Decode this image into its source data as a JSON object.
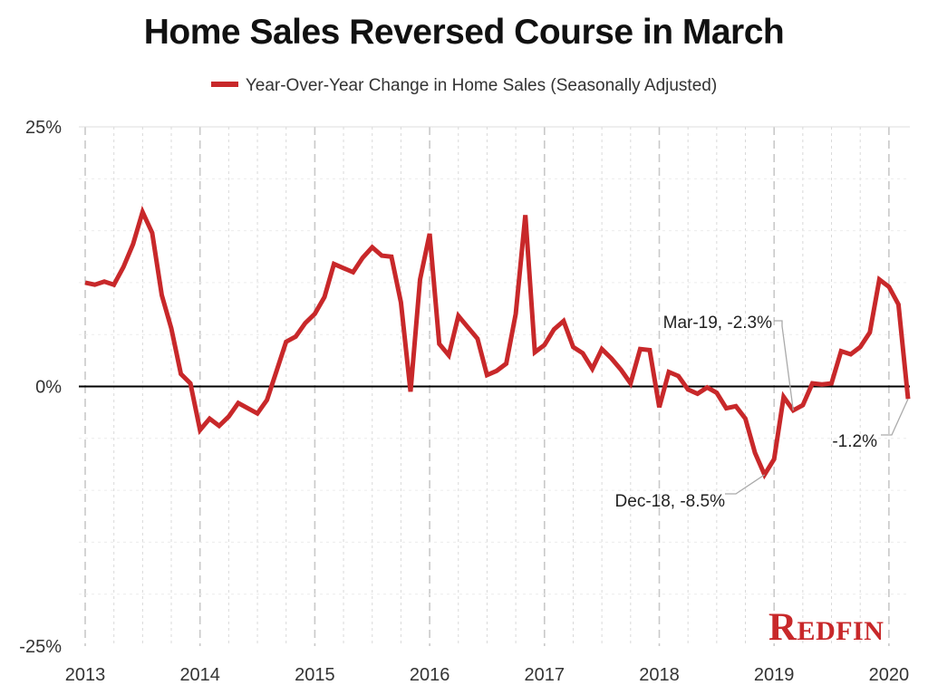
{
  "title": "Home Sales Reversed Course in March",
  "legend": {
    "label": "Year-Over-Year Change in Home Sales (Seasonally Adjusted)"
  },
  "colors": {
    "series": "#c8282a",
    "zero_line": "#000000",
    "grid": "#d9d9d9",
    "annotation_line": "#aaaaaa"
  },
  "brand": {
    "logo_text": "Redfin",
    "logo_color": "#c8282a"
  },
  "chart_data": {
    "type": "line",
    "title": "Home Sales Reversed Course in March",
    "xlabel": "",
    "ylabel": "",
    "ylim": [
      -25,
      25
    ],
    "y_ticks": [
      25,
      0,
      -25
    ],
    "y_tick_labels": [
      "25%",
      "0%",
      "-25%"
    ],
    "x_tick_labels": [
      "2013",
      "2014",
      "2015",
      "2016",
      "2017",
      "2018",
      "2019",
      "2020"
    ],
    "x_start": "2013-01",
    "x_end": "2020-03",
    "grid": "vertical",
    "series": [
      {
        "name": "Year-Over-Year Change in Home Sales (Seasonally Adjusted)",
        "x": [
          "2013-01",
          "2013-02",
          "2013-03",
          "2013-04",
          "2013-05",
          "2013-06",
          "2013-07",
          "2013-08",
          "2013-09",
          "2013-10",
          "2013-11",
          "2013-12",
          "2014-01",
          "2014-02",
          "2014-03",
          "2014-04",
          "2014-05",
          "2014-06",
          "2014-07",
          "2014-08",
          "2014-09",
          "2014-10",
          "2014-11",
          "2014-12",
          "2015-01",
          "2015-02",
          "2015-03",
          "2015-04",
          "2015-05",
          "2015-06",
          "2015-07",
          "2015-08",
          "2015-09",
          "2015-10",
          "2015-11",
          "2015-12",
          "2016-01",
          "2016-02",
          "2016-03",
          "2016-04",
          "2016-05",
          "2016-06",
          "2016-07",
          "2016-08",
          "2016-09",
          "2016-10",
          "2016-11",
          "2016-12",
          "2017-01",
          "2017-02",
          "2017-03",
          "2017-04",
          "2017-05",
          "2017-06",
          "2017-07",
          "2017-08",
          "2017-09",
          "2017-10",
          "2017-11",
          "2017-12",
          "2018-01",
          "2018-02",
          "2018-03",
          "2018-04",
          "2018-05",
          "2018-06",
          "2018-07",
          "2018-08",
          "2018-09",
          "2018-10",
          "2018-11",
          "2018-12",
          "2019-01",
          "2019-02",
          "2019-03",
          "2019-04",
          "2019-05",
          "2019-06",
          "2019-07",
          "2019-08",
          "2019-09",
          "2019-10",
          "2019-11",
          "2019-12",
          "2020-01",
          "2020-02",
          "2020-03"
        ],
        "values": [
          10.0,
          9.8,
          10.1,
          9.8,
          11.5,
          13.7,
          16.8,
          14.8,
          8.8,
          5.6,
          1.2,
          0.3,
          -4.2,
          -3.1,
          -3.8,
          -2.9,
          -1.6,
          -2.1,
          -2.6,
          -1.3,
          1.5,
          4.3,
          4.8,
          6.1,
          7.0,
          8.6,
          11.8,
          11.4,
          11.0,
          12.4,
          13.4,
          12.6,
          12.5,
          8.1,
          -0.5,
          10.3,
          14.7,
          4.1,
          3.0,
          6.8,
          5.7,
          4.6,
          1.1,
          1.5,
          2.2,
          7.0,
          16.5,
          3.3,
          4.0,
          5.5,
          6.3,
          3.8,
          3.2,
          1.7,
          3.6,
          2.7,
          1.6,
          0.3,
          3.6,
          3.5,
          -2.0,
          1.4,
          1.0,
          -0.3,
          -0.7,
          -0.1,
          -0.6,
          -2.1,
          -1.9,
          -3.1,
          -6.4,
          -8.5,
          -7.0,
          -1.0,
          -2.3,
          -1.8,
          0.3,
          0.2,
          0.3,
          3.4,
          3.1,
          3.8,
          5.2,
          10.3,
          9.6,
          7.9,
          -1.2
        ]
      }
    ],
    "annotations": [
      {
        "label": "Mar-19, -2.3%",
        "x": "2019-03",
        "y": -2.3
      },
      {
        "label": "Dec-18, -8.5%",
        "x": "2018-12",
        "y": -8.5
      },
      {
        "label": "-1.2%",
        "x": "2020-03",
        "y": -1.2
      }
    ]
  }
}
